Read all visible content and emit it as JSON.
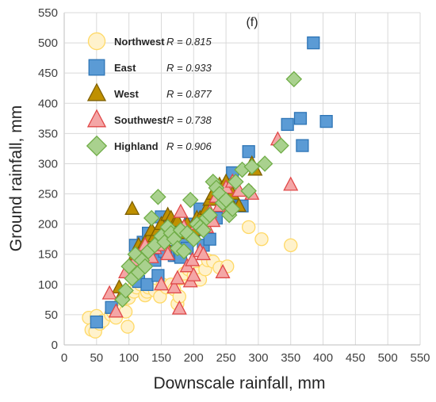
{
  "chart_data": {
    "type": "scatter",
    "panel_label": "(f)",
    "xlabel": "Downscale rainfall, mm",
    "ylabel": "Ground rainfall, mm",
    "xlim": [
      0,
      550
    ],
    "ylim": [
      0,
      550
    ],
    "xticks": [
      0,
      50,
      100,
      150,
      200,
      250,
      300,
      350,
      400,
      450,
      500,
      550
    ],
    "yticks": [
      0,
      50,
      100,
      150,
      200,
      250,
      300,
      350,
      400,
      450,
      500,
      550
    ],
    "grid": true,
    "legend_position": "top-left",
    "series": [
      {
        "name": "Northwest",
        "r_label": "R = 0.815",
        "marker": "circle",
        "fill": "#fff2cc",
        "stroke": "#ffd966",
        "points": [
          [
            38,
            45
          ],
          [
            42,
            25
          ],
          [
            48,
            22
          ],
          [
            50,
            48
          ],
          [
            55,
            35
          ],
          [
            60,
            40
          ],
          [
            72,
            50
          ],
          [
            75,
            55
          ],
          [
            80,
            45
          ],
          [
            85,
            65
          ],
          [
            88,
            72
          ],
          [
            90,
            58
          ],
          [
            95,
            55
          ],
          [
            98,
            30
          ],
          [
            100,
            78
          ],
          [
            105,
            92
          ],
          [
            108,
            88
          ],
          [
            112,
            95
          ],
          [
            118,
            100
          ],
          [
            125,
            82
          ],
          [
            128,
            88
          ],
          [
            130,
            95
          ],
          [
            140,
            90
          ],
          [
            148,
            80
          ],
          [
            152,
            100
          ],
          [
            158,
            95
          ],
          [
            165,
            100
          ],
          [
            170,
            92
          ],
          [
            175,
            68
          ],
          [
            178,
            80
          ],
          [
            180,
            110
          ],
          [
            185,
            118
          ],
          [
            192,
            125
          ],
          [
            198,
            130
          ],
          [
            200,
            115
          ],
          [
            205,
            118
          ],
          [
            210,
            108
          ],
          [
            218,
            125
          ],
          [
            222,
            140
          ],
          [
            230,
            138
          ],
          [
            240,
            128
          ],
          [
            252,
            130
          ],
          [
            285,
            195
          ],
          [
            305,
            175
          ],
          [
            350,
            165
          ]
        ]
      },
      {
        "name": "East",
        "r_label": "R = 0.933",
        "marker": "square",
        "fill": "#5b9bd5",
        "stroke": "#2e75b6",
        "points": [
          [
            50,
            38
          ],
          [
            73,
            62
          ],
          [
            110,
            165
          ],
          [
            115,
            105
          ],
          [
            122,
            170
          ],
          [
            128,
            100
          ],
          [
            130,
            185
          ],
          [
            140,
            140
          ],
          [
            145,
            115
          ],
          [
            150,
            212
          ],
          [
            155,
            155
          ],
          [
            158,
            180
          ],
          [
            162,
            185
          ],
          [
            165,
            200
          ],
          [
            170,
            148
          ],
          [
            175,
            155
          ],
          [
            178,
            150
          ],
          [
            180,
            145
          ],
          [
            185,
            170
          ],
          [
            190,
            160
          ],
          [
            195,
            200
          ],
          [
            200,
            185
          ],
          [
            210,
            225
          ],
          [
            215,
            165
          ],
          [
            225,
            175
          ],
          [
            235,
            210
          ],
          [
            240,
            250
          ],
          [
            248,
            235
          ],
          [
            255,
            240
          ],
          [
            260,
            285
          ],
          [
            275,
            230
          ],
          [
            285,
            320
          ],
          [
            345,
            365
          ],
          [
            365,
            375
          ],
          [
            368,
            330
          ],
          [
            385,
            500
          ],
          [
            405,
            370
          ]
        ]
      },
      {
        "name": "West",
        "r_label": "R = 0.877",
        "marker": "triangle",
        "fill": "#bf9000",
        "stroke": "#7f6000",
        "points": [
          [
            85,
            95
          ],
          [
            90,
            85
          ],
          [
            105,
            225
          ],
          [
            110,
            150
          ],
          [
            115,
            165
          ],
          [
            120,
            160
          ],
          [
            125,
            170
          ],
          [
            130,
            175
          ],
          [
            135,
            190
          ],
          [
            140,
            180
          ],
          [
            145,
            190
          ],
          [
            150,
            200
          ],
          [
            155,
            170
          ],
          [
            160,
            215
          ],
          [
            165,
            210
          ],
          [
            170,
            200
          ],
          [
            175,
            205
          ],
          [
            180,
            185
          ],
          [
            185,
            195
          ],
          [
            190,
            200
          ],
          [
            200,
            190
          ],
          [
            205,
            210
          ],
          [
            210,
            210
          ],
          [
            220,
            225
          ],
          [
            225,
            240
          ],
          [
            230,
            250
          ],
          [
            235,
            245
          ],
          [
            240,
            265
          ],
          [
            245,
            260
          ],
          [
            250,
            270
          ],
          [
            255,
            240
          ],
          [
            260,
            250
          ],
          [
            270,
            230
          ],
          [
            290,
            300
          ],
          [
            295,
            290
          ]
        ]
      },
      {
        "name": "Southwest",
        "r_label": "R = 0.738",
        "marker": "triangle",
        "fill": "#f4a6a6",
        "stroke": "#e04848",
        "points": [
          [
            70,
            85
          ],
          [
            80,
            55
          ],
          [
            95,
            120
          ],
          [
            110,
            140
          ],
          [
            120,
            150
          ],
          [
            125,
            165
          ],
          [
            135,
            145
          ],
          [
            140,
            160
          ],
          [
            145,
            175
          ],
          [
            150,
            100
          ],
          [
            155,
            165
          ],
          [
            160,
            150
          ],
          [
            165,
            180
          ],
          [
            170,
            95
          ],
          [
            175,
            110
          ],
          [
            178,
            60
          ],
          [
            180,
            220
          ],
          [
            185,
            195
          ],
          [
            190,
            130
          ],
          [
            195,
            105
          ],
          [
            198,
            140
          ],
          [
            200,
            115
          ],
          [
            205,
            200
          ],
          [
            210,
            155
          ],
          [
            215,
            150
          ],
          [
            220,
            195
          ],
          [
            225,
            220
          ],
          [
            230,
            205
          ],
          [
            235,
            245
          ],
          [
            240,
            230
          ],
          [
            245,
            120
          ],
          [
            250,
            260
          ],
          [
            255,
            225
          ],
          [
            260,
            270
          ],
          [
            270,
            255
          ],
          [
            290,
            250
          ],
          [
            330,
            340
          ],
          [
            350,
            265
          ]
        ]
      },
      {
        "name": "Highland",
        "r_label": "R = 0.906",
        "marker": "diamond",
        "fill": "#a9d18e",
        "stroke": "#70ad47",
        "points": [
          [
            90,
            75
          ],
          [
            95,
            90
          ],
          [
            100,
            130
          ],
          [
            105,
            110
          ],
          [
            110,
            150
          ],
          [
            115,
            120
          ],
          [
            120,
            140
          ],
          [
            125,
            130
          ],
          [
            130,
            155
          ],
          [
            135,
            210
          ],
          [
            140,
            165
          ],
          [
            145,
            245
          ],
          [
            150,
            180
          ],
          [
            155,
            170
          ],
          [
            160,
            195
          ],
          [
            165,
            185
          ],
          [
            170,
            175
          ],
          [
            175,
            160
          ],
          [
            180,
            190
          ],
          [
            185,
            155
          ],
          [
            190,
            185
          ],
          [
            195,
            240
          ],
          [
            200,
            175
          ],
          [
            205,
            200
          ],
          [
            210,
            195
          ],
          [
            215,
            190
          ],
          [
            220,
            210
          ],
          [
            225,
            215
          ],
          [
            230,
            270
          ],
          [
            235,
            260
          ],
          [
            240,
            250
          ],
          [
            245,
            235
          ],
          [
            250,
            240
          ],
          [
            255,
            215
          ],
          [
            260,
            225
          ],
          [
            265,
            270
          ],
          [
            275,
            290
          ],
          [
            285,
            255
          ],
          [
            290,
            295
          ],
          [
            310,
            300
          ],
          [
            335,
            330
          ],
          [
            355,
            440
          ]
        ]
      }
    ]
  }
}
